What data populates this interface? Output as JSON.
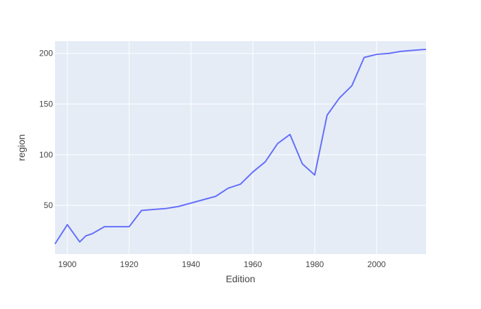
{
  "chart_data": {
    "type": "line",
    "xlabel": "Edition",
    "ylabel": "region",
    "xlim": [
      1896,
      2016
    ],
    "ylim": [
      2,
      212
    ],
    "x_ticks": [
      1900,
      1920,
      1940,
      1960,
      1980,
      2000
    ],
    "y_ticks": [
      50,
      100,
      150,
      200
    ],
    "grid": true,
    "colors": {
      "line": "#636efa",
      "plot_bg": "#e5ecf6",
      "grid": "#ffffff"
    },
    "series": [
      {
        "x": [
          1896,
          1900,
          1904,
          1906,
          1908,
          1912,
          1920,
          1924,
          1928,
          1932,
          1936,
          1948,
          1952,
          1956,
          1960,
          1964,
          1968,
          1972,
          1976,
          1980,
          1984,
          1988,
          1992,
          1996,
          2000,
          2004,
          2008,
          2012,
          2016
        ],
        "y": [
          12,
          31,
          14,
          20,
          22,
          29,
          29,
          45,
          46,
          47,
          49,
          59,
          67,
          71,
          83,
          93,
          111,
          120,
          91,
          80,
          139,
          156,
          168,
          196,
          199,
          200,
          202,
          203,
          204
        ]
      }
    ]
  }
}
